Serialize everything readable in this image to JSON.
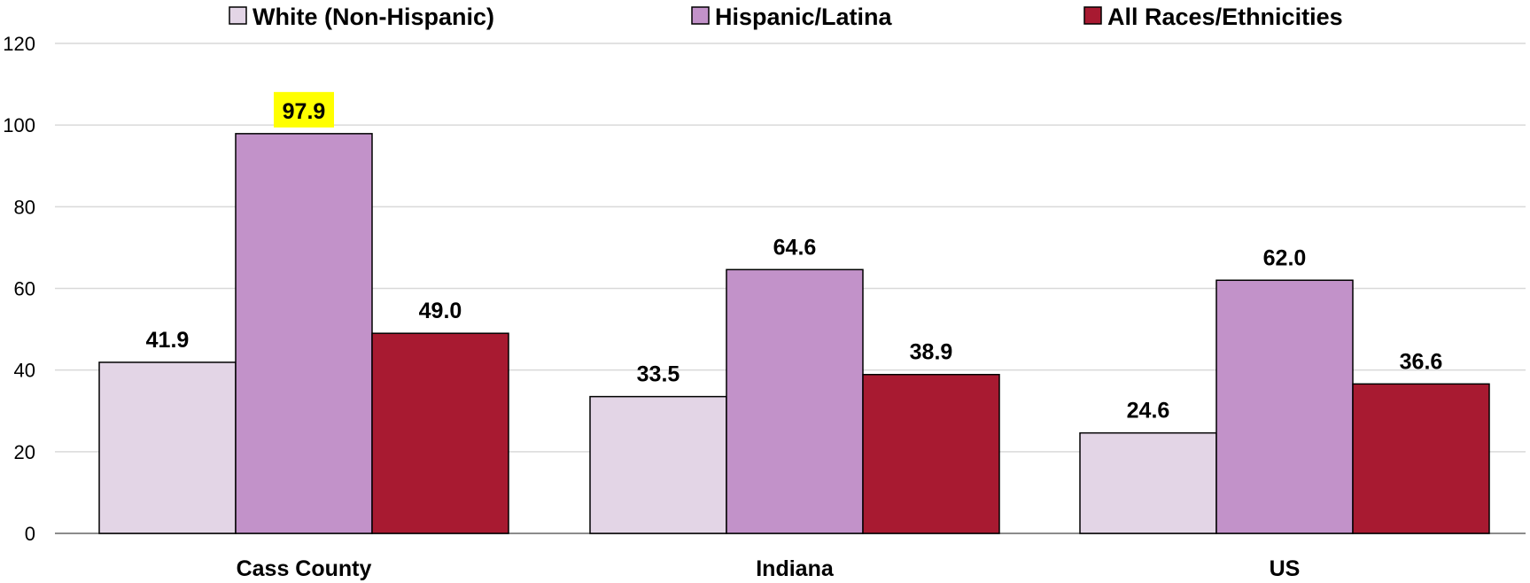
{
  "chart_data": {
    "type": "bar",
    "categories": [
      "Cass County",
      "Indiana",
      "US"
    ],
    "series": [
      {
        "name": "White (Non-Hispanic)",
        "values": [
          41.9,
          33.5,
          24.6
        ],
        "labels": [
          "41.9",
          "33.5",
          "24.6"
        ],
        "color": "#e3d5e6"
      },
      {
        "name": "Hispanic/Latina",
        "values": [
          97.9,
          64.6,
          62.0
        ],
        "labels": [
          "97.9",
          "64.6",
          "62.0"
        ],
        "color": "#c292c9"
      },
      {
        "name": "All Races/Ethnicities",
        "values": [
          49.0,
          38.9,
          36.6
        ],
        "labels": [
          "49.0",
          "38.9",
          "36.6"
        ],
        "color": "#a81a31"
      }
    ],
    "highlight": {
      "series": 1,
      "category": 0,
      "color": "#ffff00"
    },
    "yticks": [
      "0",
      "20",
      "40",
      "60",
      "80",
      "100",
      "120"
    ],
    "ylim": [
      0,
      120
    ],
    "grid": true,
    "legend": "top"
  }
}
